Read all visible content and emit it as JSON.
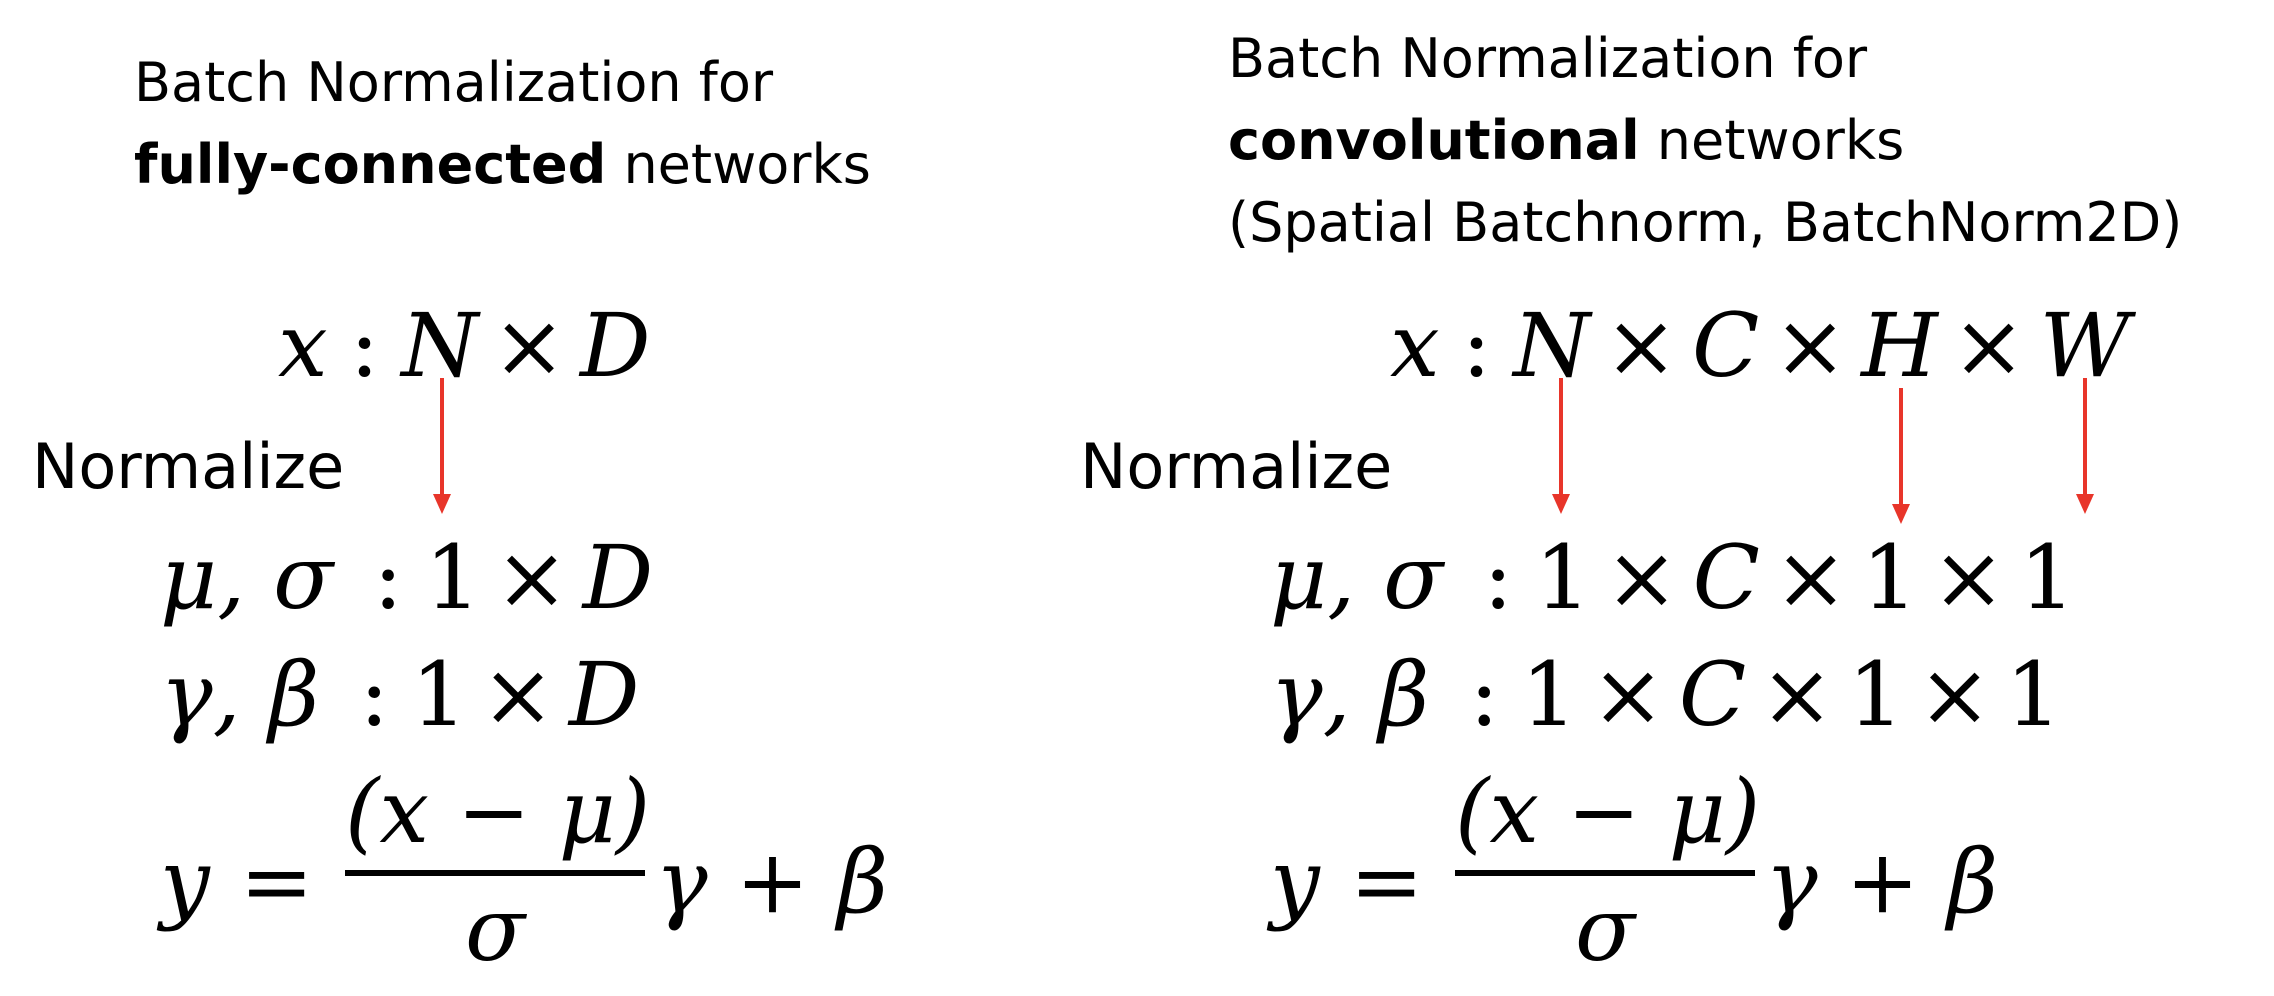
{
  "left": {
    "title_line1": "Batch Normalization for",
    "title_bold": "fully-connected",
    "title_rest": " networks",
    "normalize_label": "Normalize",
    "x_eq": {
      "var": "x",
      "sep": ":",
      "dims": [
        "N",
        "D"
      ]
    },
    "musigma_eq": {
      "vars": "μ, σ",
      "sep": ":",
      "dims": [
        "1",
        "D"
      ]
    },
    "gammabeta_eq": {
      "vars": "γ, β",
      "sep": ":",
      "dims": [
        "1",
        "D"
      ]
    },
    "y_eq": {
      "lhs": "y",
      "eq": "=",
      "num": "(x − μ)",
      "den": "σ",
      "rest": "γ + β"
    }
  },
  "right": {
    "title_line1": "Batch Normalization for",
    "title_bold": "convolutional",
    "title_rest": " networks",
    "title_line3": "(Spatial Batchnorm, BatchNorm2D)",
    "normalize_label": "Normalize",
    "x_eq": {
      "var": "x",
      "sep": ":",
      "dims": [
        "N",
        "C",
        "H",
        "W"
      ]
    },
    "musigma_eq": {
      "vars": "μ, σ",
      "sep": ":",
      "dims": [
        "1",
        "C",
        "1",
        "1"
      ]
    },
    "gammabeta_eq": {
      "vars": "γ, β",
      "sep": ":",
      "dims": [
        "1",
        "C",
        "1",
        "1"
      ]
    },
    "y_eq": {
      "lhs": "y",
      "eq": "=",
      "num": "(x − μ)",
      "den": "σ",
      "rest": "γ + β"
    }
  },
  "times_symbol": "×",
  "colors": {
    "arrow": "#e8352a",
    "text": "#000000"
  }
}
